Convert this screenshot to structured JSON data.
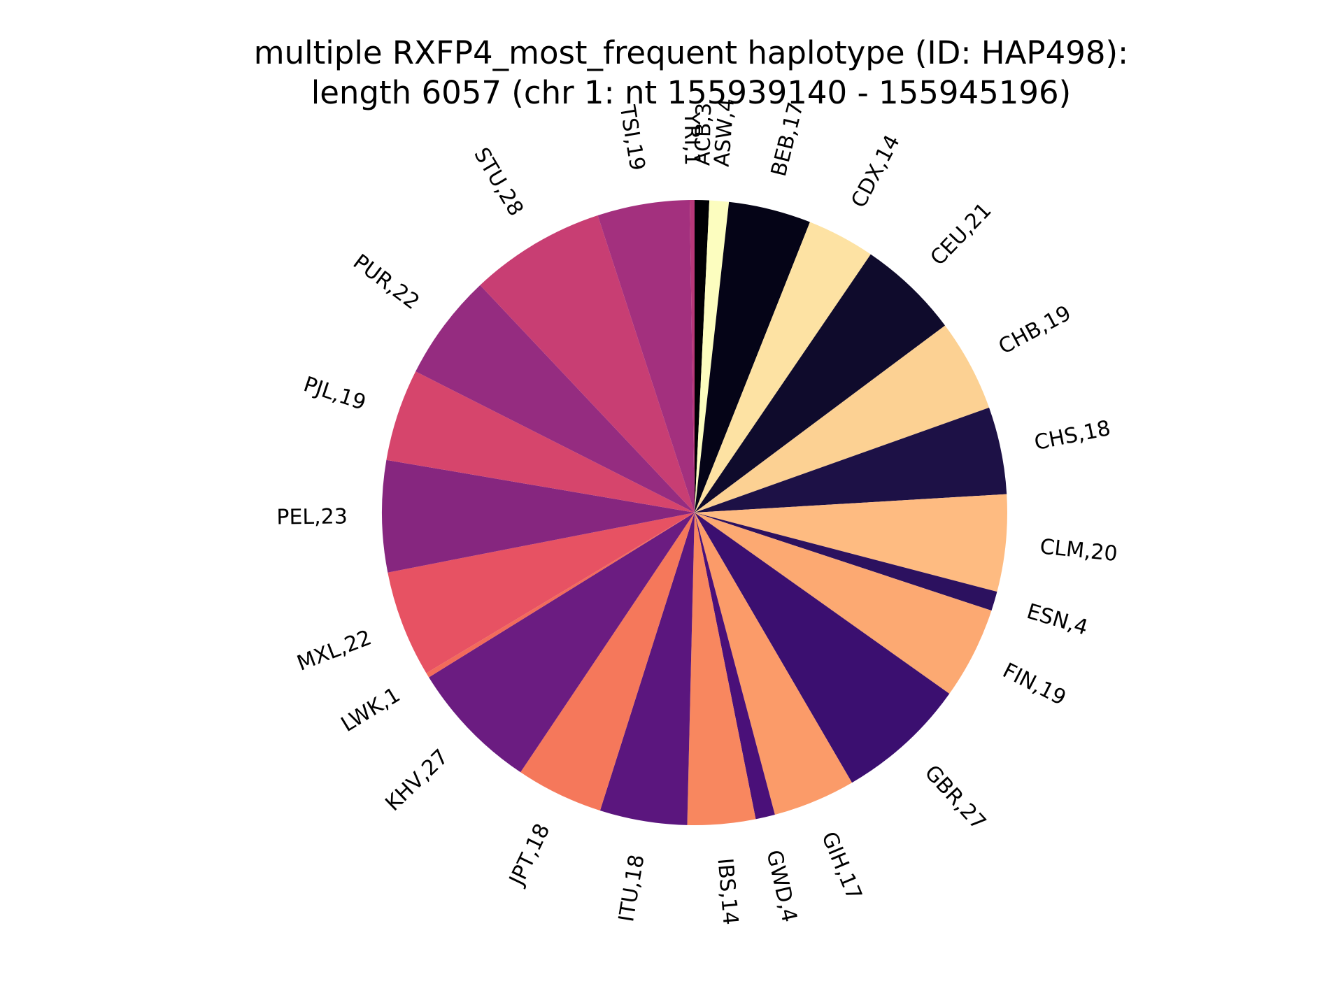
{
  "chart_data": {
    "type": "pie",
    "title_lines": [
      "multiple RXFP4_most_frequent haplotype (ID: HAP498):",
      "length 6057 (chr 1: nt 155939140 - 155945196)"
    ],
    "start_angle_deg": 90,
    "direction": "clockwise",
    "label_format": "{label},{value}",
    "slices": [
      {
        "label": "ACB",
        "value": 3,
        "color": "#000004"
      },
      {
        "label": "ASW",
        "value": 4,
        "color": "#fcfdbf"
      },
      {
        "label": "BEB",
        "value": 17,
        "color": "#050417"
      },
      {
        "label": "CDX",
        "value": 14,
        "color": "#fde2a3"
      },
      {
        "label": "CEU",
        "value": 21,
        "color": "#0f0b2c"
      },
      {
        "label": "CHB",
        "value": 19,
        "color": "#fcd193"
      },
      {
        "label": "CHS",
        "value": 18,
        "color": "#1d1146"
      },
      {
        "label": "CLM",
        "value": 20,
        "color": "#febb81"
      },
      {
        "label": "ESN",
        "value": 4,
        "color": "#2c115f"
      },
      {
        "label": "FIN",
        "value": 19,
        "color": "#fca972"
      },
      {
        "label": "GBR",
        "value": 27,
        "color": "#3b0f70"
      },
      {
        "label": "GIH",
        "value": 17,
        "color": "#fb9b69"
      },
      {
        "label": "GWD",
        "value": 4,
        "color": "#4a1079"
      },
      {
        "label": "IBS",
        "value": 14,
        "color": "#f8875f"
      },
      {
        "label": "ITU",
        "value": 18,
        "color": "#5b167e"
      },
      {
        "label": "JPT",
        "value": 18,
        "color": "#f5785b"
      },
      {
        "label": "KHV",
        "value": 27,
        "color": "#6b1c81"
      },
      {
        "label": "LWK",
        "value": 1,
        "color": "#f26b5b"
      },
      {
        "label": "MXL",
        "value": 22,
        "color": "#e75263"
      },
      {
        "label": "PEL",
        "value": 23,
        "color": "#86267f"
      },
      {
        "label": "PJL",
        "value": 19,
        "color": "#d6456c"
      },
      {
        "label": "PUR",
        "value": 22,
        "color": "#952c80"
      },
      {
        "label": "STU",
        "value": 28,
        "color": "#c83e73"
      },
      {
        "label": "TSI",
        "value": 19,
        "color": "#a3307e"
      },
      {
        "label": "YRI",
        "value": 1,
        "color": "#b73779"
      }
    ]
  }
}
